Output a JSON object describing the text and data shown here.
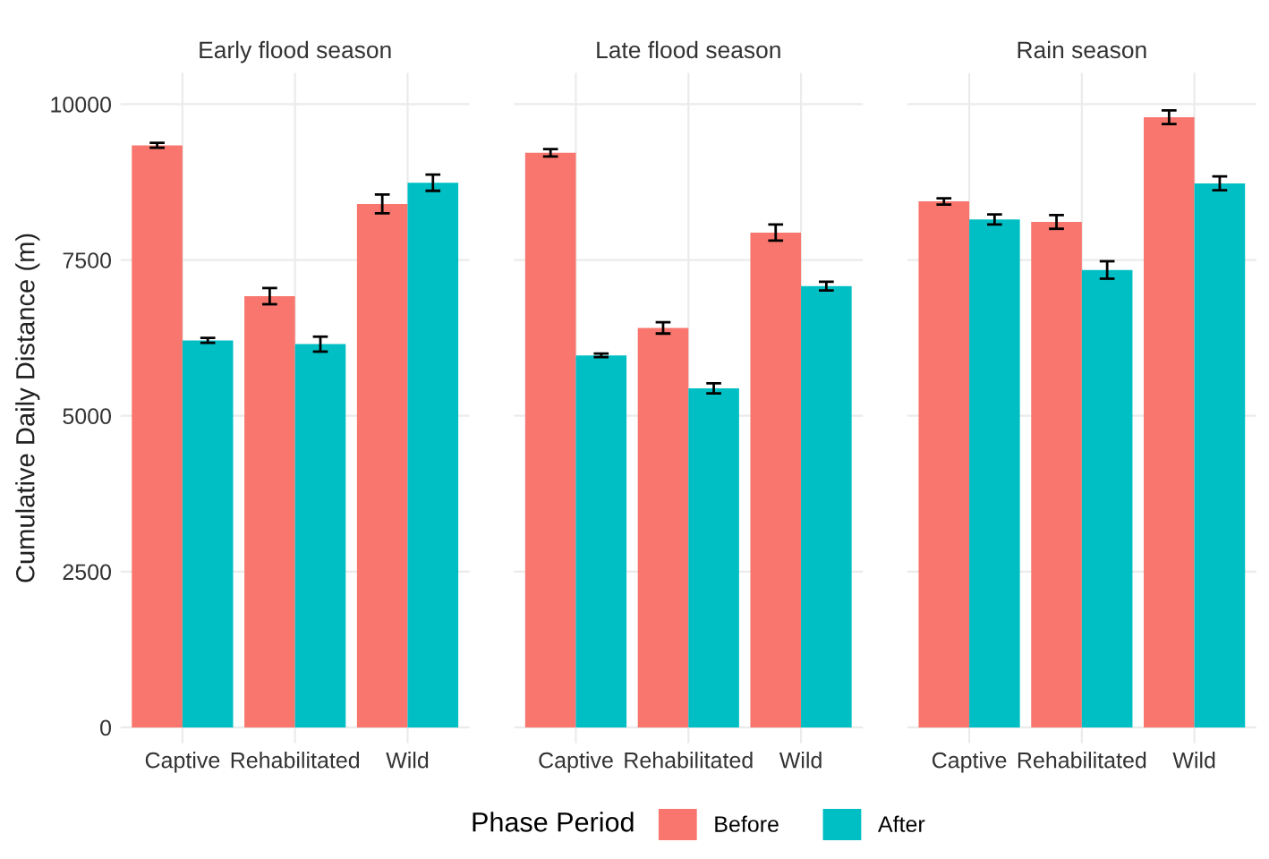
{
  "chart_data": [
    {
      "type": "bar",
      "title": "Early flood season",
      "ylabel": "Cumulative Daily Distance (m)",
      "categories": [
        "Captive",
        "Rehabilitated",
        "Wild"
      ],
      "ylim": [
        -250,
        10500
      ],
      "yticks": [
        0,
        2500,
        5000,
        7500,
        10000
      ],
      "grid": true,
      "legend": "bottom",
      "legend_title": "Phase Period",
      "series": [
        {
          "name": "Before",
          "color": "#f8766d",
          "values": [
            9340,
            6920,
            8400
          ],
          "errors": [
            40,
            130,
            150
          ]
        },
        {
          "name": "After",
          "color": "#00bfc4",
          "values": [
            6210,
            6150,
            8740
          ],
          "errors": [
            40,
            120,
            130
          ]
        }
      ]
    },
    {
      "type": "bar",
      "title": "Late flood season",
      "categories": [
        "Captive",
        "Rehabilitated",
        "Wild"
      ],
      "ylim": [
        -250,
        10500
      ],
      "yticks": [
        0,
        2500,
        5000,
        7500,
        10000
      ],
      "grid": true,
      "tick_labels": "x",
      "series": [
        {
          "color": "#f8766d",
          "values": [
            9220,
            6410,
            7940
          ],
          "errors": [
            60,
            90,
            130
          ]
        },
        {
          "color": "#00bfc4",
          "values": [
            5970,
            5440,
            7080
          ],
          "errors": [
            30,
            80,
            70
          ]
        }
      ]
    },
    {
      "type": "bar",
      "title": "Rain season",
      "categories": [
        "Captive",
        "Rehabilitated",
        "Wild"
      ],
      "ylim": [
        -250,
        10500
      ],
      "yticks": [
        0,
        2500,
        5000,
        7500,
        10000
      ],
      "grid": true,
      "tick_labels": "x",
      "series": [
        {
          "color": "#f8766d",
          "values": [
            8440,
            8110,
            9790
          ],
          "errors": [
            50,
            110,
            110
          ]
        },
        {
          "color": "#00bfc4",
          "values": [
            8150,
            7340,
            8730
          ],
          "errors": [
            80,
            140,
            110
          ]
        }
      ]
    }
  ]
}
